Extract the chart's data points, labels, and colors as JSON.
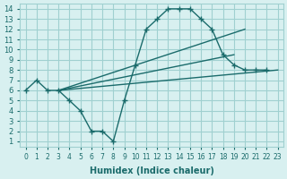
{
  "line1_x": [
    0,
    1,
    2,
    3,
    4,
    5,
    6,
    7,
    8,
    9,
    10,
    11,
    12,
    13,
    14,
    15,
    16,
    17,
    18,
    19,
    20,
    21,
    22
  ],
  "line1_y": [
    6,
    7,
    6,
    6,
    5,
    4,
    2,
    2,
    1,
    5,
    8.5,
    12,
    13,
    14,
    14,
    14,
    13,
    12,
    9.5,
    8.5,
    8,
    8,
    8
  ],
  "line2_x": [
    3,
    23
  ],
  "line2_y": [
    6,
    8
  ],
  "line3_x": [
    3,
    19
  ],
  "line3_y": [
    6,
    9.5
  ],
  "line4_x": [
    3,
    20
  ],
  "line4_y": [
    6,
    12
  ],
  "color": "#1a6b6b",
  "bg_color": "#d8f0f0",
  "grid_color": "#a0d0d0",
  "xlabel": "Humidex (Indice chaleur)",
  "xlim": [
    -0.5,
    23.5
  ],
  "ylim": [
    0.5,
    14.5
  ],
  "xticks": [
    0,
    1,
    2,
    3,
    4,
    5,
    6,
    7,
    8,
    9,
    10,
    11,
    12,
    13,
    14,
    15,
    16,
    17,
    18,
    19,
    20,
    21,
    22,
    23
  ],
  "yticks": [
    1,
    2,
    3,
    4,
    5,
    6,
    7,
    8,
    9,
    10,
    11,
    12,
    13,
    14
  ]
}
